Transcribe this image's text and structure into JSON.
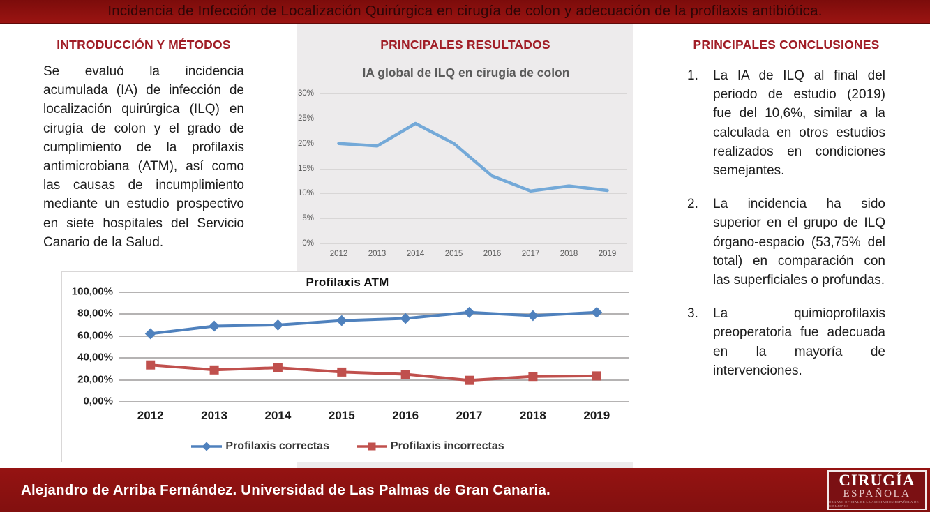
{
  "banner": {
    "title": "Incidencia de Infección de Localización Quirúrgica en cirugía de colon y adecuación de la profilaxis antibiótica."
  },
  "sections": {
    "intro": {
      "heading": "INTRODUCCIÓN Y MÉTODOS",
      "body": "Se evaluó la incidencia acumulada (IA) de infección de localización quirúrgica (ILQ) en cirugía de colon y el grado de cumplimiento de la profilaxis antimicrobiana (ATM), así como las causas de incumplimiento mediante un estudio prospectivo en siete hospitales del Servicio Canario de la Salud.",
      "abbreviations": {
        "IA": "incidencia acumulada",
        "ILQ": "infección de localización quirúrgica",
        "ATM": "profilaxis antimicrobiana"
      }
    },
    "results": {
      "heading": "PRINCIPALES RESULTADOS"
    },
    "conclusions": {
      "heading": "PRINCIPALES CONCLUSIONES",
      "items": [
        "La IA de ILQ al final del periodo de estudio (2019) fue del 10,6%, similar a la calculada en otros estudios realizados en condiciones semejantes.",
        "La incidencia ha sido superior en el grupo de ILQ órgano-espacio (53,75% del total) en comparación con las superficiales o profundas.",
        "La quimioprofilaxis preoperatoria fue adecuada en la mayoría de intervenciones."
      ]
    }
  },
  "footer": {
    "author": "Alejandro de Arriba Fernández. Universidad de Las Palmas de Gran Canaria.",
    "logo": {
      "line1": "CIRUGÍA",
      "line2": "ESPAÑOLA",
      "tagline": "ÓRGANO OFICIAL DE LA ASOCIACIÓN ESPAÑOLA DE CIRUJANOS"
    }
  },
  "colors": {
    "banner_red": "#8e100f",
    "heading_red": "#a01d26",
    "panel_gray": "#edebec",
    "ia_line_blue": "#74a9d8",
    "correctas_blue": "#4f81bd",
    "incorrectas_red": "#c0504d",
    "logo_box_red": "#7b1013"
  },
  "chart_data": [
    {
      "id": "ia-global-ilq",
      "type": "line",
      "title": "IA global de ILQ en cirugía de colon",
      "xlabel": "",
      "ylabel": "",
      "categories": [
        "2012",
        "2013",
        "2014",
        "2015",
        "2016",
        "2017",
        "2018",
        "2019"
      ],
      "series": [
        {
          "name": "IA global de ILQ",
          "color": "#74a9d8",
          "marker": "none",
          "line_width": 4.5,
          "values": [
            20,
            19.5,
            24,
            20,
            13.5,
            10.5,
            11.5,
            10.6
          ]
        }
      ],
      "ylim": [
        0,
        30
      ],
      "yticks": [
        {
          "value": 0,
          "label": "0%"
        },
        {
          "value": 5,
          "label": "5%"
        },
        {
          "value": 10,
          "label": "10%"
        },
        {
          "value": 15,
          "label": "15%"
        },
        {
          "value": 20,
          "label": "20%"
        },
        {
          "value": 25,
          "label": "25%"
        },
        {
          "value": 30,
          "label": "30%"
        }
      ],
      "grid": true,
      "legend_position": "none"
    },
    {
      "id": "profilaxis-atm",
      "type": "line",
      "title": "Profilaxis ATM",
      "xlabel": "",
      "ylabel": "",
      "categories": [
        "2012",
        "2013",
        "2014",
        "2015",
        "2016",
        "2017",
        "2018",
        "2019"
      ],
      "series": [
        {
          "name": "Profilaxis correctas",
          "color": "#4f81bd",
          "marker": "diamond",
          "line_width": 4,
          "values": [
            61.5,
            68.5,
            69.5,
            73.5,
            75.5,
            81,
            78,
            81
          ]
        },
        {
          "name": "Profilaxis incorrectas",
          "color": "#c0504d",
          "marker": "square",
          "line_width": 4,
          "values": [
            33,
            28.5,
            30.5,
            26.5,
            24.5,
            19,
            22.5,
            23
          ]
        }
      ],
      "ylim": [
        0,
        100
      ],
      "yticks": [
        {
          "value": 0,
          "label": "0,00%"
        },
        {
          "value": 20,
          "label": "20,00%"
        },
        {
          "value": 40,
          "label": "40,00%"
        },
        {
          "value": 60,
          "label": "60,00%"
        },
        {
          "value": 80,
          "label": "80,00%"
        },
        {
          "value": 100,
          "label": "100,00%"
        }
      ],
      "grid": true,
      "legend_position": "bottom"
    }
  ]
}
